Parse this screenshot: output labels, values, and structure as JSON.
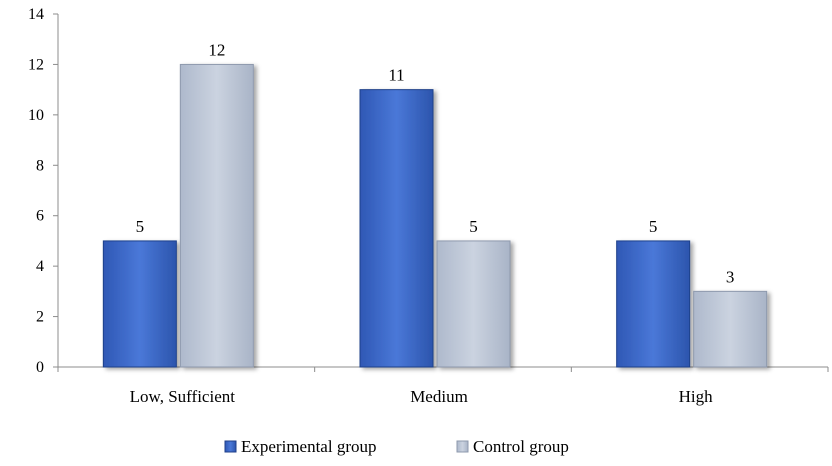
{
  "chart_data": {
    "type": "bar",
    "categories": [
      "Low, Sufficient",
      "Medium",
      "High"
    ],
    "series": [
      {
        "name": "Experimental group",
        "values": [
          5,
          11,
          5
        ],
        "color": "#3a66c4"
      },
      {
        "name": "Control group",
        "values": [
          12,
          5,
          3
        ],
        "color": "#b9c3d3"
      }
    ],
    "y_ticks": [
      0,
      2,
      4,
      6,
      8,
      10,
      12,
      14
    ],
    "ylim": [
      0,
      14
    ],
    "grid": false,
    "legend_position": "bottom"
  }
}
